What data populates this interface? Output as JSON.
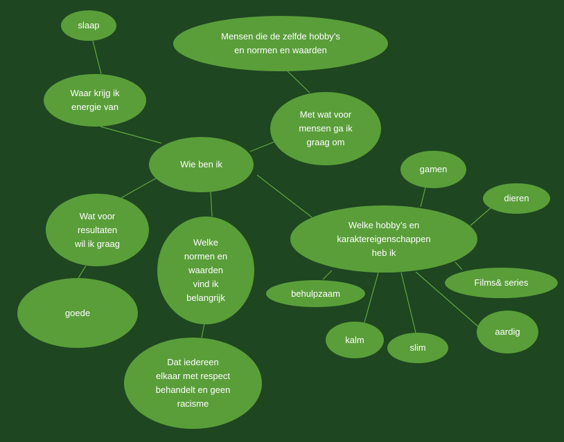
{
  "diagram": {
    "colors": {
      "background": "#1e4620",
      "node_fill": "#5a9e3a",
      "link": "#63a842",
      "text": "#ffffff"
    },
    "nodes": [
      {
        "id": "center",
        "label": "Wie ben ik"
      },
      {
        "id": "energie",
        "label": "Waar krijg ik\nenergie van"
      },
      {
        "id": "slaap",
        "label": "slaap"
      },
      {
        "id": "mensen",
        "label": "Met wat voor\nmensen ga ik\ngraag om"
      },
      {
        "id": "zelfde",
        "label": "Mensen die de zelfde hobby’s\nen normen en waarden"
      },
      {
        "id": "resultaten",
        "label": "Wat voor\nresultaten\nwil ik graag"
      },
      {
        "id": "goede",
        "label": "goede"
      },
      {
        "id": "normen",
        "label": "Welke\nnormen en\nwaarden\nvind ik\nbelangrijk"
      },
      {
        "id": "respect",
        "label": "Dat iedereen\nelkaar met respect\nbehandelt en geen\nracisme"
      },
      {
        "id": "hobbys",
        "label": "Welke hobby’s en\nkaraktereigenschappen\nheb ik"
      },
      {
        "id": "gamen",
        "label": "gamen"
      },
      {
        "id": "dieren",
        "label": "dieren"
      },
      {
        "id": "films",
        "label": "Films& series"
      },
      {
        "id": "behulpzaam",
        "label": "behulpzaam"
      },
      {
        "id": "kalm",
        "label": "kalm"
      },
      {
        "id": "slim",
        "label": "slim"
      },
      {
        "id": "aardig",
        "label": "aardig"
      }
    ],
    "links": [
      [
        "center",
        "energie"
      ],
      [
        "energie",
        "slaap"
      ],
      [
        "center",
        "mensen"
      ],
      [
        "mensen",
        "zelfde"
      ],
      [
        "center",
        "resultaten"
      ],
      [
        "resultaten",
        "goede"
      ],
      [
        "center",
        "normen"
      ],
      [
        "normen",
        "respect"
      ],
      [
        "center",
        "hobbys"
      ],
      [
        "hobbys",
        "gamen"
      ],
      [
        "hobbys",
        "dieren"
      ],
      [
        "hobbys",
        "films"
      ],
      [
        "hobbys",
        "behulpzaam"
      ],
      [
        "hobbys",
        "kalm"
      ],
      [
        "hobbys",
        "slim"
      ],
      [
        "hobbys",
        "aardig"
      ]
    ]
  }
}
